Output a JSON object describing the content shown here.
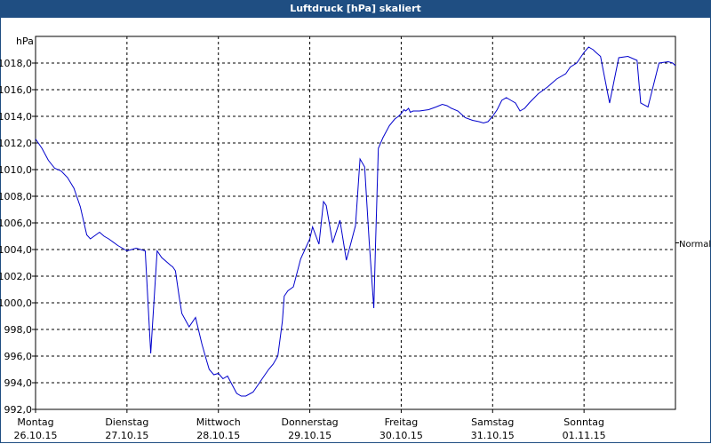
{
  "window": {
    "title": "Luftdruck [hPa] skaliert"
  },
  "colors": {
    "titlebar": "#1f4e82",
    "line": "#0000cc",
    "grid": "#000000"
  },
  "chart_data": {
    "type": "line",
    "title": "Luftdruck [hPa] skaliert",
    "ylabel": "hPa",
    "ylim": [
      992,
      1020
    ],
    "yticks": [
      992,
      994,
      996,
      998,
      1000,
      1002,
      1004,
      1006,
      1008,
      1010,
      1012,
      1014,
      1016,
      1018
    ],
    "ytick_labels": [
      "992,0",
      "994,0",
      "996,0",
      "998,0",
      "1000,0",
      "1002,0",
      "1004,0",
      "1006,0",
      "1008,0",
      "1010,0",
      "1012,0",
      "1014,0",
      "1016,0",
      "1018,0"
    ],
    "xlim": [
      0,
      7
    ],
    "x_categories": [
      {
        "day": "Montag",
        "date": "26.10.15"
      },
      {
        "day": "Dienstag",
        "date": "27.10.15"
      },
      {
        "day": "Mittwoch",
        "date": "28.10.15"
      },
      {
        "day": "Donnerstag",
        "date": "29.10.15"
      },
      {
        "day": "Freitag",
        "date": "30.10.15"
      },
      {
        "day": "Samstag",
        "date": "31.10.15"
      },
      {
        "day": "Sonntag",
        "date": "01.11.15"
      }
    ],
    "reference_line": {
      "label": "Normal",
      "value": 1004.5
    },
    "grid": true,
    "series": [
      {
        "x": [
          0,
          0.07,
          0.14,
          0.21,
          0.28,
          0.35,
          0.42,
          0.49,
          0.56,
          0.6,
          0.7,
          0.75,
          0.8,
          0.9,
          1.0,
          1.1,
          1.2,
          1.26,
          1.33,
          1.38,
          1.48,
          1.5,
          1.53,
          1.57,
          1.6,
          1.68,
          1.75,
          1.82,
          1.87,
          1.9,
          1.95,
          2.0,
          2.05,
          2.1,
          2.2,
          2.25,
          2.3,
          2.38,
          2.45,
          2.5,
          2.55,
          2.6,
          2.65,
          2.7,
          2.72,
          2.76,
          2.82,
          2.9,
          3.0,
          3.03,
          3.1,
          3.15,
          3.18,
          3.25,
          3.33,
          3.4,
          3.45,
          3.5,
          3.55,
          3.6,
          3.65,
          3.7,
          3.72,
          3.75,
          3.8,
          3.87,
          3.93,
          3.97,
          4.0,
          4.03,
          4.05,
          4.08,
          4.1,
          4.13,
          4.2,
          4.3,
          4.38,
          4.45,
          4.5,
          4.55,
          4.62,
          4.7,
          4.78,
          4.85,
          4.9,
          4.95,
          5.0,
          5.05,
          5.1,
          5.15,
          5.2,
          5.25,
          5.3,
          5.35,
          5.4,
          5.5,
          5.6,
          5.7,
          5.8,
          5.85,
          5.92,
          6.0,
          6.05,
          6.1,
          6.13,
          6.18,
          6.28,
          6.38,
          6.48,
          6.58,
          6.62,
          6.7,
          6.82,
          6.92,
          6.97,
          7.0
        ],
        "y": [
          1012.3,
          1011.6,
          1010.7,
          1010.1,
          1009.9,
          1009.4,
          1008.6,
          1007.2,
          1005.1,
          1004.8,
          1005.3,
          1005.0,
          1004.8,
          1004.3,
          1003.9,
          1004.1,
          1003.9,
          996.2,
          1003.9,
          1003.4,
          1002.8,
          1002.7,
          1002.4,
          1000.5,
          999.2,
          998.2,
          998.9,
          996.9,
          995.7,
          995.0,
          994.6,
          994.7,
          994.3,
          994.5,
          993.2,
          993.0,
          993.0,
          993.3,
          994.0,
          994.5,
          995.0,
          995.4,
          996.0,
          998.6,
          1000.5,
          1000.9,
          1001.2,
          1003.3,
          1004.8,
          1005.7,
          1004.4,
          1007.6,
          1007.3,
          1004.5,
          1006.2,
          1003.2,
          1004.5,
          1005.8,
          1010.8,
          1010.2,
          1004.6,
          999.6,
          1004.5,
          1011.6,
          1012.4,
          1013.3,
          1013.8,
          1014.0,
          1014.2,
          1014.5,
          1014.4,
          1014.6,
          1014.3,
          1014.4,
          1014.4,
          1014.5,
          1014.7,
          1014.9,
          1014.8,
          1014.6,
          1014.4,
          1013.9,
          1013.7,
          1013.6,
          1013.5,
          1013.6,
          1014.0,
          1014.5,
          1015.2,
          1015.4,
          1015.2,
          1015.0,
          1014.4,
          1014.6,
          1015.0,
          1015.7,
          1016.2,
          1016.8,
          1017.2,
          1017.7,
          1018.0,
          1018.8,
          1019.2,
          1019.0,
          1018.8,
          1018.5,
          1015.0,
          1018.4,
          1018.5,
          1018.2,
          1015.0,
          1014.7,
          1018.0,
          1018.1,
          1018.0,
          1017.8
        ]
      }
    ]
  }
}
